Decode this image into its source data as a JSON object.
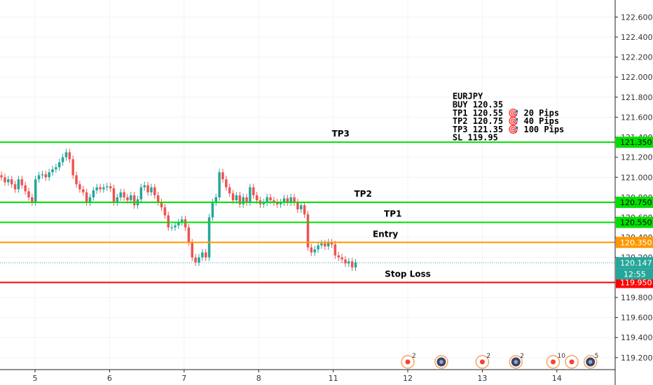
{
  "chart_data": {
    "type": "candlestick",
    "symbol": "EURJPY",
    "ylim": [
      119.08,
      122.77
    ],
    "y_ticks": [
      "122.600",
      "122.400",
      "122.200",
      "122.000",
      "121.800",
      "121.600",
      "121.400",
      "121.200",
      "121.000",
      "120.800",
      "120.600",
      "120.400",
      "120.200",
      "119.800",
      "119.600",
      "119.400",
      "119.200"
    ],
    "x_ticks": [
      {
        "label": "5",
        "t": 5
      },
      {
        "label": "6",
        "t": 6
      },
      {
        "label": "7",
        "t": 7
      },
      {
        "label": "8",
        "t": 8
      },
      {
        "label": "11",
        "t": 9
      },
      {
        "label": "12",
        "t": 10
      },
      {
        "label": "13",
        "t": 11
      },
      {
        "label": "14",
        "t": 12
      }
    ],
    "levels": [
      {
        "name": "TP3",
        "value": 121.35,
        "color": "#00e000",
        "label": "TP3",
        "tag": "121.350",
        "tag_bg": "#00e000",
        "label_t": 9.1
      },
      {
        "name": "TP2",
        "value": 120.75,
        "color": "#00e000",
        "label": "TP2",
        "tag": "120.750",
        "tag_bg": "#00e000",
        "label_t": 9.4
      },
      {
        "name": "TP1",
        "value": 120.55,
        "color": "#00e000",
        "label": "TP1",
        "tag": "120.550",
        "tag_bg": "#00e000",
        "label_t": 9.8
      },
      {
        "name": "Entry",
        "value": 120.35,
        "color": "#ff9800",
        "label": "Entry",
        "tag": "120.350",
        "tag_bg": "#ff9800",
        "label_t": 9.7
      },
      {
        "name": "Stop Loss",
        "value": 119.95,
        "color": "#ff0000",
        "label": "Stop Loss",
        "tag": "119.950",
        "tag_bg": "#ff0000",
        "label_t": 10.0
      }
    ],
    "last_price": {
      "value": 120.147,
      "label": "120.147",
      "countdown": "12:55",
      "color": "#26a69a"
    },
    "annotation_lines": [
      "EURJPY",
      "BUY 120.35",
      "TP1 120.55 🎯 20 Pips",
      "TP2 120.75 🎯 40 Pips",
      "TP3 121.35 🎯 100 Pips",
      "SL 119.95"
    ],
    "events": [
      {
        "t": 10.0,
        "kind": "red",
        "count": "2"
      },
      {
        "t": 10.45,
        "kind": "dark",
        "count": ""
      },
      {
        "t": 11.0,
        "kind": "red",
        "count": "2"
      },
      {
        "t": 11.45,
        "kind": "dark",
        "count": "2"
      },
      {
        "t": 11.95,
        "kind": "red",
        "count": "10"
      },
      {
        "t": 12.2,
        "kind": "red",
        "count": ""
      },
      {
        "t": 12.45,
        "kind": "dark",
        "count": "5"
      }
    ],
    "candles_x_range": [
      4.55,
      9.3
    ],
    "candles_close": [
      121.0,
      120.95,
      120.98,
      120.93,
      120.88,
      120.98,
      120.92,
      120.86,
      120.8,
      120.75,
      120.98,
      121.02,
      121.03,
      121.0,
      121.05,
      121.08,
      121.1,
      121.15,
      121.2,
      121.25,
      121.18,
      121.02,
      120.93,
      120.88,
      120.85,
      120.75,
      120.8,
      120.87,
      120.9,
      120.88,
      120.9,
      120.91,
      120.89,
      120.75,
      120.8,
      120.85,
      120.8,
      120.77,
      120.82,
      120.72,
      120.78,
      120.9,
      120.92,
      120.85,
      120.9,
      120.82,
      120.75,
      120.7,
      120.62,
      120.5,
      120.5,
      120.52,
      120.55,
      120.58,
      120.5,
      120.35,
      120.2,
      120.15,
      120.2,
      120.25,
      120.2,
      120.6,
      120.75,
      120.8,
      121.05,
      120.98,
      120.9,
      120.84,
      120.77,
      120.82,
      120.73,
      120.8,
      120.75,
      120.9,
      120.82,
      120.77,
      120.73,
      120.75,
      120.8,
      120.77,
      120.75,
      120.73,
      120.75,
      120.79,
      120.75,
      120.8,
      120.75,
      120.68,
      120.72,
      120.63,
      120.3,
      120.25,
      120.28,
      120.32,
      120.34,
      120.31,
      120.35,
      120.33,
      120.22,
      120.2,
      120.18,
      120.14,
      120.16,
      120.1,
      120.15
    ]
  }
}
